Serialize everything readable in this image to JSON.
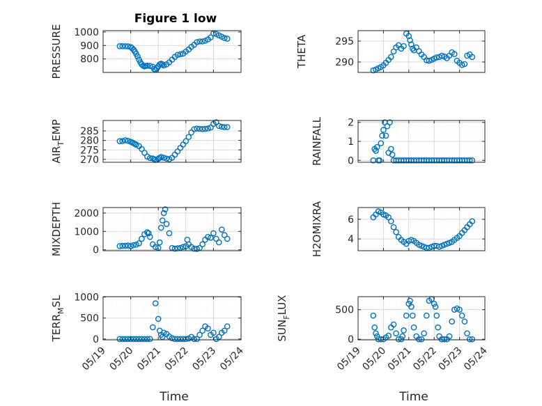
{
  "figure": {
    "title": "Figure 1 low",
    "xlabel": "Time"
  },
  "colors": {
    "marker": "#0072BD",
    "axis": "#262626",
    "grid": "#d9d9d9",
    "minor_grid": "#ececec"
  },
  "chart_data": [
    {
      "type": "scatter",
      "panel": "top-left",
      "ylabel": "PRESSURE",
      "title": "Figure 1 low",
      "ylim": [
        700,
        1010
      ],
      "yticks": [
        800,
        900,
        1000
      ],
      "xlim": [
        0,
        5
      ],
      "xticklabels": [
        "05/19",
        "05/20",
        "05/21",
        "05/22",
        "05/23",
        "05/24"
      ],
      "x": [
        0.6,
        0.7,
        0.8,
        0.9,
        1.0,
        1.05,
        1.1,
        1.15,
        1.2,
        1.25,
        1.3,
        1.35,
        1.4,
        1.45,
        1.5,
        1.55,
        1.6,
        1.7,
        1.8,
        1.85,
        1.9,
        1.95,
        2.0,
        2.05,
        2.1,
        2.15,
        2.2,
        2.3,
        2.4,
        2.5,
        2.6,
        2.7,
        2.8,
        2.9,
        3.0,
        3.1,
        3.2,
        3.3,
        3.4,
        3.5,
        3.6,
        3.7,
        3.8,
        3.9,
        4.0,
        4.1,
        4.2,
        4.3,
        4.4,
        4.5
      ],
      "y": [
        895,
        895,
        895,
        893,
        888,
        880,
        870,
        855,
        838,
        818,
        795,
        775,
        760,
        750,
        745,
        748,
        750,
        748,
        742,
        725,
        720,
        730,
        745,
        760,
        765,
        760,
        752,
        760,
        775,
        795,
        815,
        830,
        835,
        840,
        855,
        870,
        890,
        905,
        925,
        930,
        930,
        935,
        945,
        960,
        990,
        985,
        975,
        965,
        955,
        950
      ]
    },
    {
      "type": "scatter",
      "panel": "top-right",
      "ylabel": "THETA",
      "ylim": [
        287.5,
        297.5
      ],
      "yticks": [
        290,
        295
      ],
      "xlim": [
        0,
        5
      ],
      "xticklabels": [
        "05/19",
        "05/20",
        "05/21",
        "05/22",
        "05/23",
        "05/24"
      ],
      "x": [
        0.6,
        0.7,
        0.8,
        0.9,
        1.0,
        1.1,
        1.2,
        1.3,
        1.4,
        1.5,
        1.6,
        1.7,
        1.8,
        1.9,
        2.0,
        2.05,
        2.1,
        2.15,
        2.2,
        2.3,
        2.4,
        2.5,
        2.6,
        2.7,
        2.8,
        2.9,
        3.0,
        3.1,
        3.2,
        3.3,
        3.4,
        3.5,
        3.6,
        3.7,
        3.8,
        3.9,
        4.0,
        4.1,
        4.2,
        4.3,
        4.4,
        4.5
      ],
      "y": [
        288,
        288.2,
        288.5,
        288.8,
        289.2,
        289.8,
        290.5,
        291.2,
        292.5,
        293.5,
        294,
        293.2,
        293.8,
        296.8,
        296.2,
        295.2,
        294.2,
        293.2,
        292.8,
        293.5,
        292.6,
        291.8,
        291.2,
        290.4,
        290.3,
        290.5,
        290.8,
        291.1,
        291.2,
        291.5,
        291.3,
        290.9,
        291.5,
        292.3,
        291.9,
        290.3,
        289.8,
        289.3,
        289.5,
        291.5,
        291.8,
        291.2
      ]
    },
    {
      "type": "scatter",
      "panel": "middle-left-1",
      "ylabel": "AIR_TEMP",
      "ylim": [
        268.5,
        290.5
      ],
      "yticks": [
        270,
        275,
        280,
        285
      ],
      "xlim": [
        0,
        5
      ],
      "xticklabels": [
        "05/19",
        "05/20",
        "05/21",
        "05/22",
        "05/23",
        "05/24"
      ],
      "x": [
        0.6,
        0.7,
        0.8,
        0.9,
        1.0,
        1.05,
        1.1,
        1.15,
        1.2,
        1.3,
        1.4,
        1.5,
        1.6,
        1.7,
        1.8,
        1.85,
        1.9,
        2.0,
        2.05,
        2.1,
        2.2,
        2.3,
        2.4,
        2.5,
        2.6,
        2.7,
        2.8,
        2.9,
        3.0,
        3.1,
        3.2,
        3.3,
        3.4,
        3.5,
        3.6,
        3.7,
        3.8,
        3.9,
        4.0,
        4.1,
        4.2,
        4.3,
        4.4,
        4.5
      ],
      "y": [
        279.6,
        279.7,
        280.1,
        279.8,
        279.3,
        279,
        278.6,
        278.2,
        277.8,
        277,
        275.5,
        273.5,
        271.5,
        270.7,
        270.5,
        270.2,
        269.7,
        270.3,
        270.8,
        271.3,
        270.9,
        270.4,
        270.1,
        270.9,
        272.5,
        274.2,
        276.1,
        277.8,
        279.6,
        281.8,
        284.2,
        285.9,
        286.3,
        286.1,
        286.0,
        286.1,
        286.3,
        286.8,
        288.7,
        289.6,
        287.6,
        287.2,
        287.0,
        287.0
      ]
    },
    {
      "type": "scatter",
      "panel": "middle-right-1",
      "ylabel": "RAINFALL",
      "ylim": [
        -0.1,
        2.1
      ],
      "yticks": [
        0,
        1,
        2
      ],
      "xlim": [
        0,
        5
      ],
      "xticklabels": [
        "05/19",
        "05/20",
        "05/21",
        "05/22",
        "05/23",
        "05/24"
      ],
      "x": [
        0.6,
        0.65,
        0.7,
        0.75,
        0.8,
        0.85,
        0.9,
        0.95,
        1.0,
        1.05,
        1.1,
        1.15,
        1.2,
        1.25,
        1.3,
        1.35,
        1.4,
        1.5,
        1.6,
        1.7,
        1.8,
        1.9,
        2.0,
        2.1,
        2.2,
        2.3,
        2.4,
        2.5,
        2.6,
        2.7,
        2.8,
        2.9,
        3.0,
        3.1,
        3.2,
        3.3,
        3.4,
        3.5,
        3.6,
        3.7,
        3.8,
        3.9,
        4.0,
        4.1,
        4.2,
        4.3,
        4.4,
        4.5
      ],
      "y": [
        0,
        0.6,
        0.5,
        0.7,
        0,
        0,
        0.9,
        1.3,
        1.6,
        2.0,
        1.3,
        1.8,
        0.4,
        2.0,
        0.6,
        0.3,
        0,
        0,
        0,
        0,
        0,
        0,
        0,
        0,
        0,
        0,
        0,
        0,
        0,
        0,
        0,
        0,
        0,
        0,
        0,
        0,
        0,
        0,
        0,
        0,
        0,
        0,
        0,
        0,
        0,
        0,
        0,
        0
      ]
    },
    {
      "type": "scatter",
      "panel": "middle-left-2",
      "ylabel": "MIXDEPTH",
      "ylim": [
        -50,
        2300
      ],
      "yticks": [
        0,
        1000,
        2000
      ],
      "xlim": [
        0,
        5
      ],
      "xticklabels": [
        "05/19",
        "05/20",
        "05/21",
        "05/22",
        "05/23",
        "05/24"
      ],
      "x": [
        0.6,
        0.7,
        0.8,
        0.9,
        1.0,
        1.1,
        1.2,
        1.3,
        1.4,
        1.5,
        1.6,
        1.65,
        1.7,
        1.8,
        1.9,
        2.0,
        2.05,
        2.1,
        2.15,
        2.2,
        2.25,
        2.3,
        2.4,
        2.5,
        2.6,
        2.7,
        2.8,
        2.9,
        3.0,
        3.05,
        3.1,
        3.2,
        3.3,
        3.4,
        3.5,
        3.6,
        3.7,
        3.8,
        3.9,
        4.0,
        4.1,
        4.2,
        4.3,
        4.4,
        4.5
      ],
      "y": [
        200,
        210,
        220,
        230,
        200,
        250,
        280,
        350,
        600,
        850,
        950,
        900,
        700,
        300,
        150,
        100,
        400,
        1200,
        1600,
        2000,
        2200,
        1400,
        900,
        100,
        60,
        80,
        100,
        150,
        200,
        550,
        300,
        150,
        60,
        50,
        100,
        300,
        550,
        700,
        650,
        900,
        600,
        400,
        1100,
        800,
        600
      ]
    },
    {
      "type": "scatter",
      "panel": "middle-right-2",
      "ylabel": "H2OMIXRA",
      "ylim": [
        2.8,
        7.2
      ],
      "yticks": [
        4,
        6
      ],
      "xlim": [
        0,
        5
      ],
      "xticklabels": [
        "05/19",
        "05/20",
        "05/21",
        "05/22",
        "05/23",
        "05/24"
      ],
      "x": [
        0.6,
        0.7,
        0.8,
        0.9,
        1.0,
        1.1,
        1.2,
        1.3,
        1.4,
        1.5,
        1.6,
        1.7,
        1.8,
        1.9,
        2.0,
        2.1,
        2.2,
        2.3,
        2.4,
        2.5,
        2.6,
        2.7,
        2.8,
        2.9,
        3.0,
        3.1,
        3.2,
        3.3,
        3.4,
        3.5,
        3.6,
        3.7,
        3.8,
        3.9,
        4.0,
        4.1,
        4.2,
        4.3,
        4.4,
        4.5
      ],
      "y": [
        6.2,
        6.5,
        6.8,
        6.7,
        6.5,
        6.4,
        6.2,
        5.8,
        5.2,
        4.7,
        4.2,
        3.9,
        3.7,
        3.5,
        3.8,
        3.9,
        3.8,
        3.6,
        3.4,
        3.3,
        3.2,
        3.1,
        3.1,
        3.2,
        3.3,
        3.3,
        3.2,
        3.3,
        3.4,
        3.5,
        3.6,
        3.7,
        3.9,
        4.1,
        4.3,
        4.6,
        4.9,
        5.2,
        5.5,
        5.8
      ]
    },
    {
      "type": "scatter",
      "panel": "bottom-left",
      "ylabel": "TERR_MSL",
      "ylim": [
        -20,
        1010
      ],
      "yticks": [
        0,
        500,
        1000
      ],
      "xlim": [
        0,
        5
      ],
      "xticklabels": [
        "05/19",
        "05/20",
        "05/21",
        "05/22",
        "05/23",
        "05/24"
      ],
      "x": [
        0.6,
        0.7,
        0.8,
        0.9,
        1.0,
        1.1,
        1.2,
        1.3,
        1.4,
        1.5,
        1.6,
        1.7,
        1.8,
        1.9,
        2.0,
        2.05,
        2.1,
        2.15,
        2.2,
        2.3,
        2.4,
        2.5,
        2.6,
        2.7,
        2.8,
        2.9,
        3.0,
        3.1,
        3.2,
        3.3,
        3.4,
        3.5,
        3.6,
        3.7,
        3.8,
        3.9,
        4.0,
        4.1,
        4.2,
        4.3,
        4.4,
        4.5
      ],
      "y": [
        0,
        0,
        0,
        0,
        0,
        0,
        0,
        0,
        0,
        0,
        0,
        0,
        280,
        850,
        480,
        200,
        100,
        50,
        150,
        120,
        60,
        20,
        0,
        0,
        0,
        0,
        0,
        10,
        50,
        0,
        0,
        100,
        200,
        300,
        250,
        100,
        150,
        0,
        50,
        150,
        200,
        300
      ]
    },
    {
      "type": "scatter",
      "panel": "bottom-right",
      "ylabel": "SUN_FLUX",
      "ylim": [
        -10,
        720
      ],
      "yticks": [
        0,
        500
      ],
      "xlim": [
        0,
        5
      ],
      "xticklabels": [
        "05/19",
        "05/20",
        "05/21",
        "05/22",
        "05/23",
        "05/24"
      ],
      "x": [
        0.6,
        0.65,
        0.7,
        0.75,
        0.8,
        0.9,
        1.0,
        1.1,
        1.2,
        1.3,
        1.4,
        1.5,
        1.6,
        1.7,
        1.75,
        1.8,
        1.9,
        2.0,
        2.05,
        2.1,
        2.15,
        2.2,
        2.3,
        2.4,
        2.5,
        2.6,
        2.7,
        2.8,
        2.9,
        3.0,
        3.05,
        3.1,
        3.15,
        3.2,
        3.3,
        3.4,
        3.5,
        3.6,
        3.7,
        3.8,
        3.9,
        4.0,
        4.1,
        4.2,
        4.3,
        4.4,
        4.5
      ],
      "y": [
        400,
        200,
        100,
        50,
        0,
        0,
        0,
        30,
        60,
        200,
        250,
        100,
        0,
        0,
        50,
        150,
        400,
        600,
        650,
        550,
        400,
        200,
        50,
        0,
        0,
        100,
        400,
        650,
        680,
        600,
        550,
        400,
        200,
        50,
        0,
        0,
        0,
        50,
        300,
        500,
        520,
        500,
        400,
        300,
        100,
        0,
        0
      ]
    }
  ]
}
